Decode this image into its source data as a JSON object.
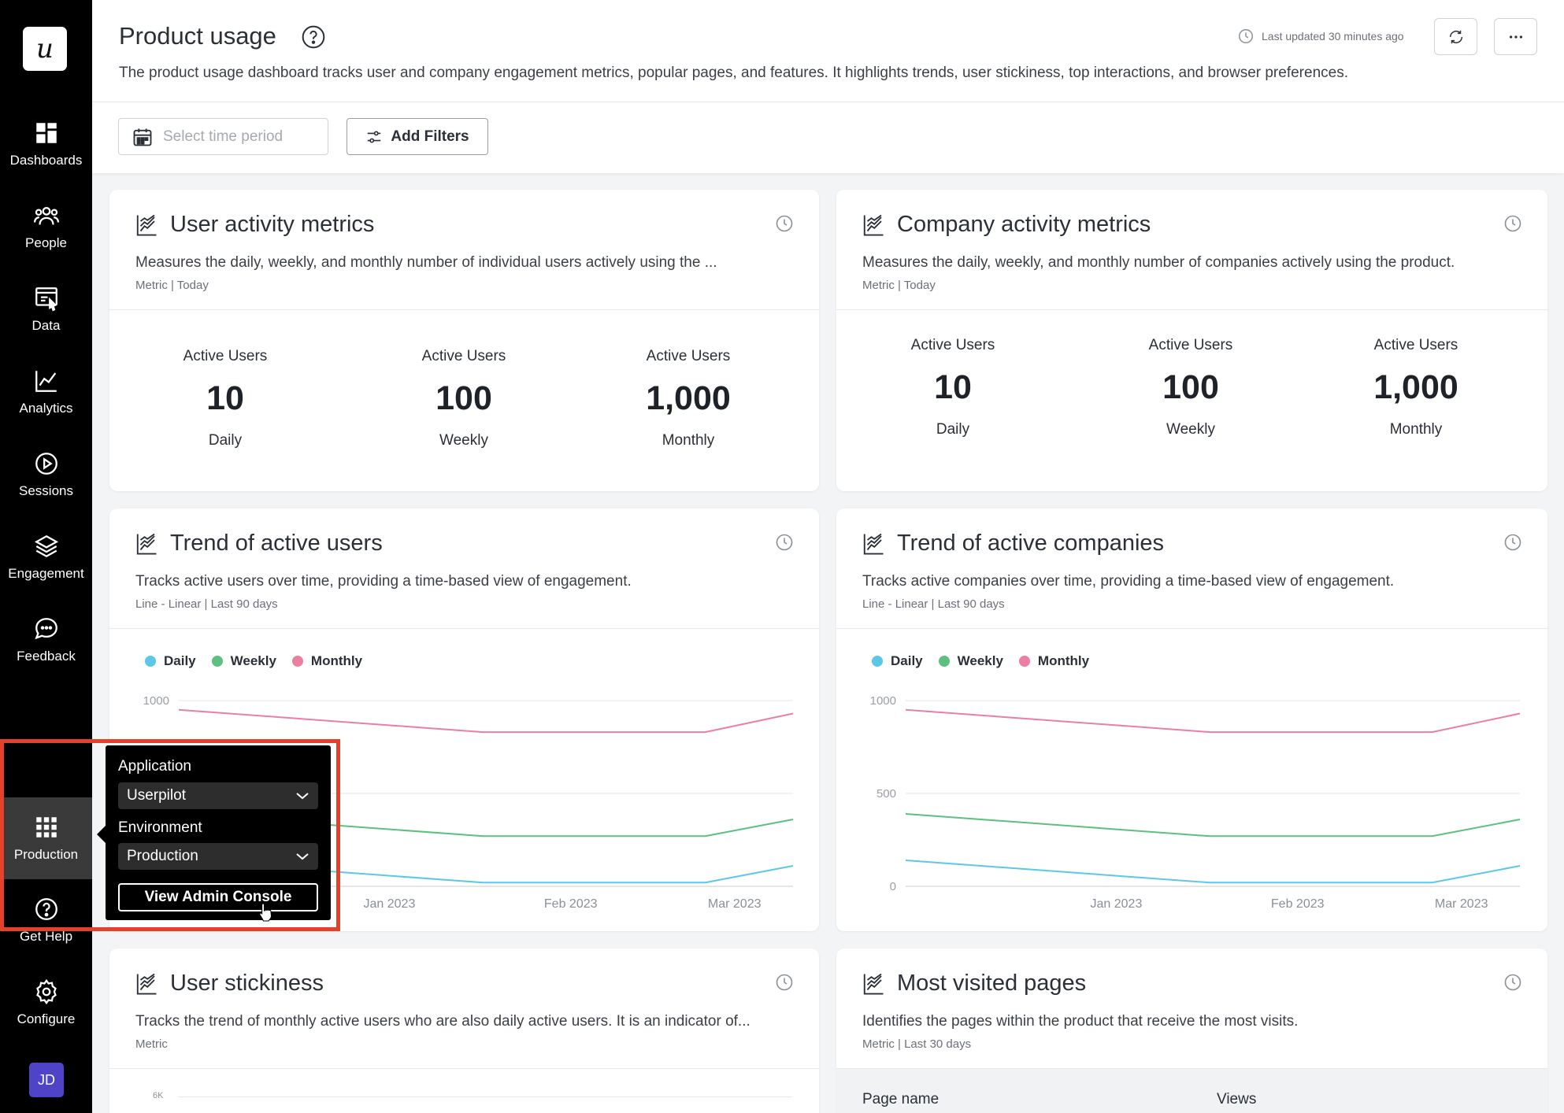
{
  "sidebar": {
    "logo": "u",
    "items": [
      {
        "label": "Dashboards",
        "icon": "dashboard-icon"
      },
      {
        "label": "People",
        "icon": "people-icon"
      },
      {
        "label": "Data",
        "icon": "data-icon"
      },
      {
        "label": "Analytics",
        "icon": "analytics-icon"
      },
      {
        "label": "Sessions",
        "icon": "play-icon"
      },
      {
        "label": "Engagement",
        "icon": "layers-icon"
      },
      {
        "label": "Feedback",
        "icon": "chat-icon"
      },
      {
        "label": "Production",
        "icon": "grid-icon"
      },
      {
        "label": "Get Help",
        "icon": "help-icon"
      },
      {
        "label": "Configure",
        "icon": "gear-icon"
      }
    ],
    "avatar": "JD"
  },
  "header": {
    "title": "Product usage",
    "description": "The product usage dashboard tracks user and company engagement metrics, popular pages, and features. It highlights trends, user stickiness, top interactions, and browser preferences.",
    "last_updated": "Last updated 30 minutes ago"
  },
  "filters": {
    "period_placeholder": "Select time period",
    "add_filters": "Add Filters"
  },
  "cards": {
    "user_activity": {
      "title": "User activity metrics",
      "description": "Measures the daily, weekly, and monthly number of individual users actively using the ...",
      "meta": "Metric | Today",
      "metrics": [
        {
          "label": "Active Users",
          "value": "10",
          "period": "Daily"
        },
        {
          "label": "Active Users",
          "value": "100",
          "period": "Weekly"
        },
        {
          "label": "Active Users",
          "value": "1,000",
          "period": "Monthly"
        }
      ]
    },
    "company_activity": {
      "title": "Company activity metrics",
      "description": "Measures the daily, weekly, and monthly number of companies actively using the product.",
      "meta": "Metric | Today",
      "metrics": [
        {
          "label": "Active Users",
          "value": "10",
          "period": "Daily"
        },
        {
          "label": "Active Users",
          "value": "100",
          "period": "Weekly"
        },
        {
          "label": "Active Users",
          "value": "1,000",
          "period": "Monthly"
        }
      ]
    },
    "trend_users": {
      "title": "Trend of active users",
      "description": "Tracks active users over time, providing a time-based view of engagement.",
      "meta": "Line - Linear | Last 90 days"
    },
    "trend_companies": {
      "title": "Trend of active companies",
      "description": "Tracks active companies over time, providing a time-based view of engagement.",
      "meta": "Line - Linear | Last 90 days"
    },
    "stickiness": {
      "title": "User stickiness",
      "description": "Tracks the trend of monthly active users who are also daily active users. It is an indicator of...",
      "meta": "Metric",
      "axis_label": "6K"
    },
    "visited_pages": {
      "title": "Most visited pages",
      "description": "Identifies the pages within the product that receive the most visits.",
      "meta": "Metric | Last 30 days",
      "columns": [
        "Page name",
        "Views"
      ]
    }
  },
  "popover": {
    "application_label": "Application",
    "application_value": "Userpilot",
    "environment_label": "Environment",
    "environment_value": "Production",
    "button": "View Admin Console"
  },
  "chart_data": [
    {
      "type": "line",
      "title": "Trend of active users",
      "x": [
        "Jan 2023",
        "Feb 2023",
        "Mar 2023"
      ],
      "x_ticks": [
        "Jan 2023",
        "Feb 2023",
        "Mar 2023"
      ],
      "y_ticks": [
        0,
        500,
        1000
      ],
      "ylim": [
        0,
        1000
      ],
      "legend_placement": "top-left",
      "grid": true,
      "series": [
        {
          "name": "Daily",
          "color": "#5bc8e8",
          "x": [
            "2022-12-10",
            "2023-01-31",
            "2023-03-10",
            "2023-03-25"
          ],
          "values": [
            140,
            20,
            20,
            110
          ]
        },
        {
          "name": "Weekly",
          "color": "#5cc07f",
          "x": [
            "2022-12-10",
            "2023-01-31",
            "2023-03-10",
            "2023-03-25"
          ],
          "values": [
            390,
            270,
            270,
            360
          ]
        },
        {
          "name": "Monthly",
          "color": "#ec7fa0",
          "x": [
            "2022-12-10",
            "2023-01-31",
            "2023-03-10",
            "2023-03-25"
          ],
          "values": [
            950,
            830,
            830,
            930
          ]
        }
      ]
    },
    {
      "type": "line",
      "title": "Trend of active companies",
      "x": [
        "Jan 2023",
        "Feb 2023",
        "Mar 2023"
      ],
      "x_ticks": [
        "Jan 2023",
        "Feb 2023",
        "Mar 2023"
      ],
      "y_ticks": [
        0,
        500,
        1000
      ],
      "ylim": [
        0,
        1000
      ],
      "legend_placement": "top-left",
      "grid": true,
      "series": [
        {
          "name": "Daily",
          "color": "#5bc8e8",
          "x": [
            "2022-12-10",
            "2023-01-31",
            "2023-03-10",
            "2023-03-25"
          ],
          "values": [
            140,
            20,
            20,
            110
          ]
        },
        {
          "name": "Weekly",
          "color": "#5cc07f",
          "x": [
            "2022-12-10",
            "2023-01-31",
            "2023-03-10",
            "2023-03-25"
          ],
          "values": [
            390,
            270,
            270,
            360
          ]
        },
        {
          "name": "Monthly",
          "color": "#ec7fa0",
          "x": [
            "2022-12-10",
            "2023-01-31",
            "2023-03-10",
            "2023-03-25"
          ],
          "values": [
            950,
            830,
            830,
            930
          ]
        }
      ]
    }
  ]
}
